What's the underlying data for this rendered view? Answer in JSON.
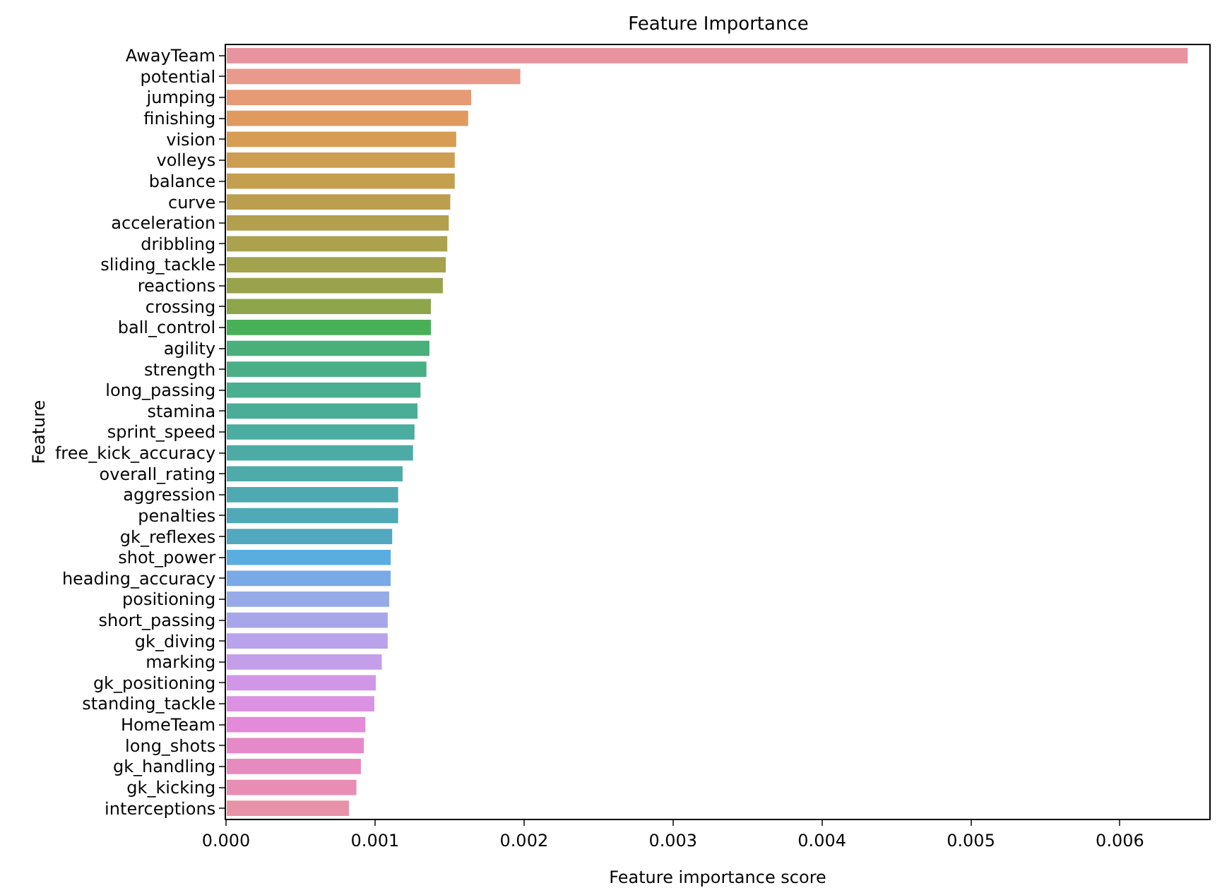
{
  "chart_data": {
    "type": "bar",
    "orientation": "horizontal",
    "title": "Feature Importance",
    "xlabel": "Feature importance score",
    "ylabel": "Feature",
    "categories": [
      "AwayTeam",
      "potential",
      "jumping",
      "finishing",
      "vision",
      "volleys",
      "balance",
      "curve",
      "acceleration",
      "dribbling",
      "sliding_tackle",
      "reactions",
      "crossing",
      "ball_control",
      "agility",
      "strength",
      "long_passing",
      "stamina",
      "sprint_speed",
      "free_kick_accuracy",
      "overall_rating",
      "aggression",
      "penalties",
      "gk_reflexes",
      "shot_power",
      "heading_accuracy",
      "positioning",
      "short_passing",
      "gk_diving",
      "marking",
      "gk_positioning",
      "standing_tackle",
      "HomeTeam",
      "long_shots",
      "gk_handling",
      "gk_kicking",
      "interceptions"
    ],
    "values": [
      0.00646,
      0.00198,
      0.00165,
      0.00163,
      0.00155,
      0.00154,
      0.00154,
      0.00151,
      0.0015,
      0.00149,
      0.00148,
      0.00146,
      0.00138,
      0.00138,
      0.00137,
      0.00135,
      0.00131,
      0.00129,
      0.00127,
      0.00126,
      0.00119,
      0.00116,
      0.00116,
      0.00112,
      0.00111,
      0.00111,
      0.0011,
      0.00109,
      0.00109,
      0.00105,
      0.00101,
      0.001,
      0.00094,
      0.00093,
      0.00091,
      0.00088,
      0.00083
    ],
    "colors": [
      "#e8939f",
      "#e99a8a",
      "#e69a76",
      "#e19a5e",
      "#d79d52",
      "#cd9e51",
      "#c49f50",
      "#bb9f4f",
      "#b3a04f",
      "#aba14e",
      "#a3a24d",
      "#99a34c",
      "#8ea54b",
      "#48b057",
      "#4ab07b",
      "#4aaf87",
      "#4aae91",
      "#4aad98",
      "#4bad9f",
      "#4caca5",
      "#4dabaa",
      "#4eaab0",
      "#4fa9b6",
      "#52a8be",
      "#5aade0",
      "#7aaae6",
      "#97aae8",
      "#a8a6ea",
      "#b9a3ea",
      "#c59ee9",
      "#d296e6",
      "#dc92e3",
      "#e38ad9",
      "#e689c8",
      "#e78bbf",
      "#e88eb5",
      "#e892a9"
    ],
    "xlim": [
      0,
      0.0066
    ],
    "xticks": [
      {
        "value": 0,
        "label": "0.000"
      },
      {
        "value": 0.001,
        "label": "0.001"
      },
      {
        "value": 0.002,
        "label": "0.002"
      },
      {
        "value": 0.003,
        "label": "0.003"
      },
      {
        "value": 0.004,
        "label": "0.004"
      },
      {
        "value": 0.005,
        "label": "0.005"
      },
      {
        "value": 0.006,
        "label": "0.006"
      }
    ],
    "grid": false
  }
}
